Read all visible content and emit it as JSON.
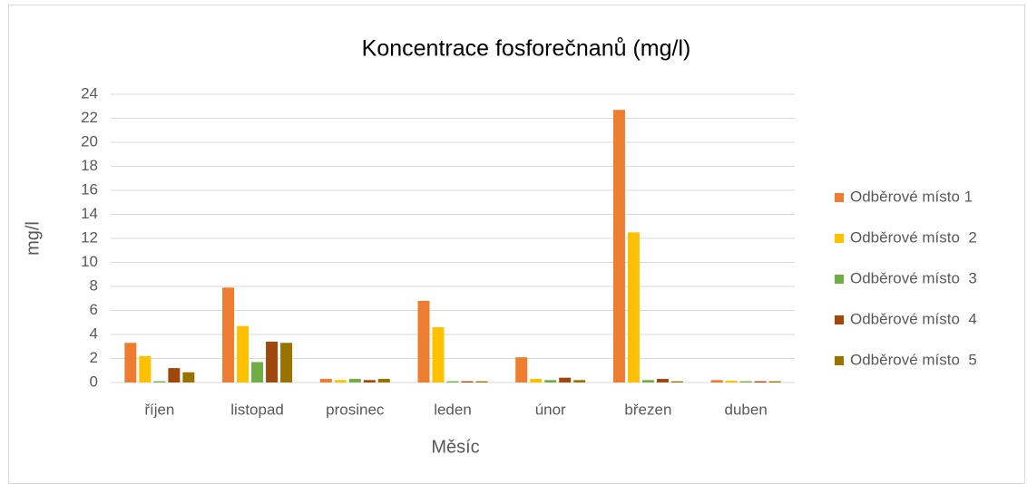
{
  "chart_data": {
    "type": "bar",
    "title": "Koncentrace fosforečnanů (mg/l)",
    "x_label": "Měsíc",
    "y_label": "mg/l",
    "categories": [
      "říjen",
      "listopad",
      "prosinec",
      "leden",
      "únor",
      "březen",
      "duben"
    ],
    "series": [
      {
        "name": "Odběrové místo 1",
        "color": "#ed7d31",
        "values": [
          3.3,
          7.9,
          0.3,
          6.8,
          2.1,
          22.7,
          0.2
        ]
      },
      {
        "name": "Odběrové místo  2",
        "color": "#ffc000",
        "values": [
          2.2,
          4.7,
          0.2,
          4.6,
          0.3,
          12.5,
          0.15
        ]
      },
      {
        "name": "Odběrové místo  3",
        "color": "#70ad47",
        "values": [
          0.1,
          1.7,
          0.3,
          0.1,
          0.2,
          0.2,
          0.1
        ]
      },
      {
        "name": "Odběrové místo  4",
        "color": "#9e480e",
        "values": [
          1.2,
          3.4,
          0.2,
          0.1,
          0.4,
          0.3,
          0.1
        ]
      },
      {
        "name": "Odběrové místo  5",
        "color": "#997300",
        "values": [
          0.85,
          3.3,
          0.3,
          0.1,
          0.2,
          0.1,
          0.1
        ]
      }
    ],
    "ylim": [
      0,
      24
    ],
    "yticks": [
      0,
      2,
      4,
      6,
      8,
      10,
      12,
      14,
      16,
      18,
      20,
      22,
      24
    ],
    "grid": true,
    "legend": "right"
  }
}
